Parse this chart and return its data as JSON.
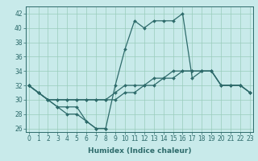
{
  "x_labels": [
    0,
    1,
    2,
    3,
    4,
    5,
    6,
    7,
    8,
    9,
    10,
    11,
    12,
    13,
    14,
    15,
    16,
    17,
    18,
    19,
    20,
    21,
    22,
    23
  ],
  "line_peak": [
    32,
    31,
    30,
    29,
    29,
    29,
    27,
    26,
    26,
    32,
    37,
    41,
    40,
    41,
    41,
    41,
    42,
    33,
    34,
    34,
    32,
    32,
    32,
    31
  ],
  "line_flat1": [
    32,
    31,
    30,
    30,
    30,
    30,
    30,
    30,
    30,
    31,
    32,
    32,
    32,
    33,
    33,
    34,
    34,
    34,
    34,
    34,
    32,
    32,
    32,
    31
  ],
  "line_flat2": [
    32,
    31,
    30,
    30,
    30,
    30,
    30,
    30,
    30,
    30,
    31,
    31,
    32,
    32,
    33,
    33,
    34,
    34,
    34,
    34,
    32,
    32,
    32,
    31
  ],
  "line_dip_x": [
    0,
    1,
    2,
    3,
    4,
    5,
    6,
    7,
    8
  ],
  "line_dip_y": [
    32,
    31,
    30,
    29,
    28,
    28,
    27,
    26,
    26
  ],
  "ylim": [
    25.5,
    43
  ],
  "yticks": [
    26,
    28,
    30,
    32,
    34,
    36,
    38,
    40,
    42
  ],
  "xlim": [
    -0.3,
    23.3
  ],
  "line_color": "#2e6b6b",
  "bg_color": "#c8eaea",
  "grid_color": "#99ccbb",
  "xlabel": "Humidex (Indice chaleur)",
  "xlabel_fontsize": 6.5,
  "tick_fontsize": 5.5,
  "markersize": 2.0,
  "linewidth": 0.9
}
